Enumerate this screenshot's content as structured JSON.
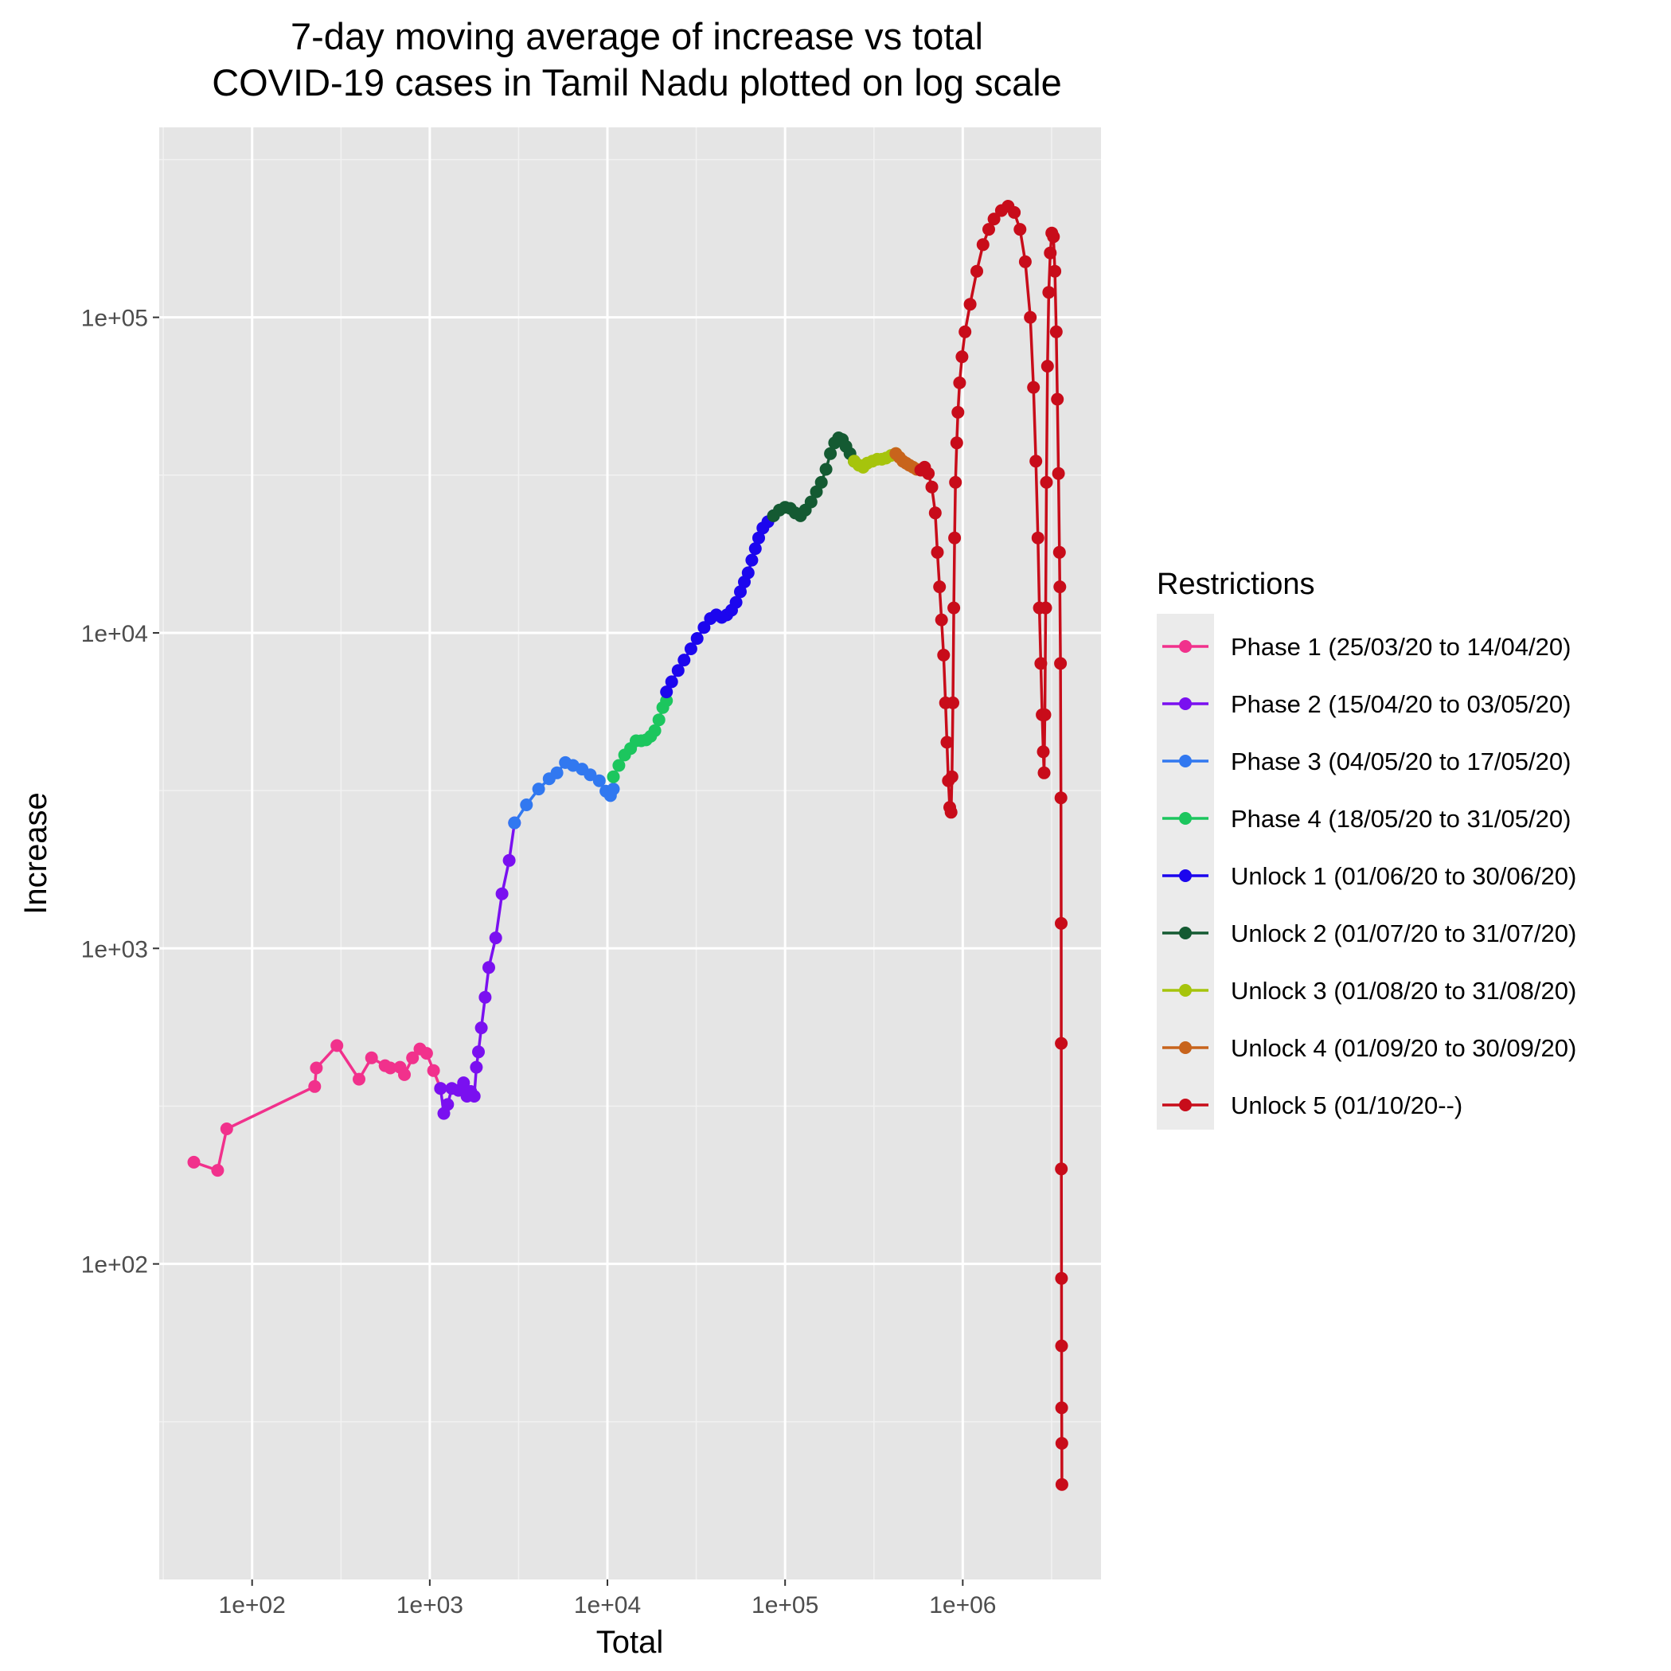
{
  "chart_data": {
    "type": "line",
    "title_line1": "7-day moving average of increase vs total",
    "title_line2": "COVID-19 cases in Tamil Nadu plotted on log scale",
    "xlabel": "Total",
    "ylabel": "Increase",
    "x_scale": "log10",
    "y_scale": "log10",
    "xlim": [
      30,
      6000000
    ],
    "ylim": [
      10,
      400000
    ],
    "x_ticks": [
      100,
      1000,
      10000,
      100000,
      1000000
    ],
    "x_tick_labels": [
      "1e+02",
      "1e+03",
      "1e+04",
      "1e+05",
      "1e+06"
    ],
    "y_ticks": [
      100,
      1000,
      10000,
      100000
    ],
    "y_tick_labels": [
      "1e+02",
      "1e+03",
      "1e+04",
      "1e+05"
    ],
    "grid": true,
    "legend_position": "right",
    "legend_title": "Restrictions",
    "series": [
      {
        "name": "Phase 1 (25/03/20 to 14/04/20)",
        "color": "#f1318c",
        "points": [
          [
            47,
            210
          ],
          [
            64,
            198
          ],
          [
            72,
            268
          ],
          [
            225,
            365
          ],
          [
            230,
            418
          ],
          [
            300,
            492
          ],
          [
            400,
            385
          ],
          [
            470,
            450
          ],
          [
            560,
            425
          ],
          [
            600,
            418
          ],
          [
            680,
            420
          ],
          [
            720,
            398
          ],
          [
            800,
            450
          ],
          [
            880,
            480
          ],
          [
            960,
            465
          ],
          [
            1050,
            410
          ],
          [
            1150,
            360
          ]
        ]
      },
      {
        "name": "Phase 2 (15/04/20 to 03/05/20)",
        "color": "#7a10f0",
        "points": [
          [
            1150,
            360
          ],
          [
            1200,
            300
          ],
          [
            1260,
            320
          ],
          [
            1330,
            360
          ],
          [
            1450,
            355
          ],
          [
            1550,
            375
          ],
          [
            1620,
            340
          ],
          [
            1700,
            352
          ],
          [
            1780,
            340
          ],
          [
            1830,
            420
          ],
          [
            1880,
            470
          ],
          [
            1950,
            560
          ],
          [
            2050,
            700
          ],
          [
            2150,
            870
          ],
          [
            2350,
            1080
          ],
          [
            2550,
            1490
          ],
          [
            2800,
            1900
          ],
          [
            3000,
            2500
          ]
        ]
      },
      {
        "name": "Phase 3 (04/05/20 to 17/05/20)",
        "color": "#3178f0",
        "points": [
          [
            3000,
            2500
          ],
          [
            3500,
            2850
          ],
          [
            4100,
            3200
          ],
          [
            4700,
            3450
          ],
          [
            5200,
            3600
          ],
          [
            5800,
            3880
          ],
          [
            6400,
            3800
          ],
          [
            7200,
            3700
          ],
          [
            8000,
            3550
          ],
          [
            9000,
            3400
          ],
          [
            9800,
            3150
          ],
          [
            10400,
            3050
          ],
          [
            10800,
            3200
          ]
        ]
      },
      {
        "name": "Phase 4 (18/05/20 to 31/05/20)",
        "color": "#1cc65e",
        "points": [
          [
            10800,
            3500
          ],
          [
            11600,
            3800
          ],
          [
            12500,
            4100
          ],
          [
            13500,
            4300
          ],
          [
            14500,
            4550
          ],
          [
            15500,
            4550
          ],
          [
            16500,
            4580
          ],
          [
            17500,
            4700
          ],
          [
            18500,
            4900
          ],
          [
            19500,
            5300
          ],
          [
            20500,
            5800
          ],
          [
            21500,
            6100
          ]
        ]
      },
      {
        "name": "Unlock 1 (01/06/20 to 30/06/20)",
        "color": "#1c06ee",
        "points": [
          [
            21500,
            6500
          ],
          [
            23000,
            7000
          ],
          [
            25000,
            7600
          ],
          [
            27000,
            8200
          ],
          [
            29500,
            8900
          ],
          [
            32000,
            9600
          ],
          [
            35000,
            10400
          ],
          [
            38000,
            11100
          ],
          [
            41000,
            11400
          ],
          [
            44000,
            11200
          ],
          [
            47000,
            11400
          ],
          [
            50000,
            11800
          ],
          [
            53000,
            12500
          ],
          [
            56000,
            13500
          ],
          [
            59000,
            14500
          ],
          [
            62000,
            15500
          ],
          [
            65000,
            17000
          ],
          [
            68000,
            18500
          ],
          [
            71000,
            20000
          ],
          [
            75000,
            21500
          ],
          [
            80000,
            22500
          ],
          [
            86000,
            23500
          ]
        ]
      },
      {
        "name": "Unlock 2 (01/07/20 to 31/07/20)",
        "color": "#145a32",
        "points": [
          [
            86000,
            23500
          ],
          [
            93000,
            24500
          ],
          [
            100000,
            25000
          ],
          [
            107000,
            24800
          ],
          [
            114000,
            24000
          ],
          [
            122000,
            23500
          ],
          [
            130000,
            24500
          ],
          [
            140000,
            26000
          ],
          [
            150000,
            28000
          ],
          [
            160000,
            30000
          ],
          [
            170000,
            33000
          ],
          [
            180000,
            37000
          ],
          [
            190000,
            40000
          ],
          [
            200000,
            41500
          ],
          [
            210000,
            41000
          ],
          [
            220000,
            39000
          ],
          [
            232000,
            37000
          ],
          [
            245000,
            35000
          ]
        ]
      },
      {
        "name": "Unlock 3 (01/08/20 to 31/08/20)",
        "color": "#a6c40c",
        "points": [
          [
            245000,
            35000
          ],
          [
            260000,
            34000
          ],
          [
            275000,
            33500
          ],
          [
            290000,
            34500
          ],
          [
            310000,
            35000
          ],
          [
            330000,
            35500
          ],
          [
            350000,
            35500
          ],
          [
            370000,
            35800
          ],
          [
            395000,
            36500
          ],
          [
            420000,
            37000
          ]
        ]
      },
      {
        "name": "Unlock 4 (01/09/20 to 30/09/20)",
        "color": "#c8641c",
        "points": [
          [
            420000,
            37000
          ],
          [
            440000,
            36000
          ],
          [
            460000,
            35000
          ],
          [
            480000,
            34500
          ],
          [
            500000,
            34000
          ],
          [
            525000,
            33500
          ],
          [
            550000,
            33000
          ],
          [
            580000,
            32800
          ]
        ]
      },
      {
        "name": "Unlock 5 (01/10/20--)",
        "color": "#c80c1a",
        "points": [
          [
            580000,
            32800
          ],
          [
            610000,
            33500
          ],
          [
            640000,
            32000
          ],
          [
            670000,
            29000
          ],
          [
            700000,
            24000
          ],
          [
            720000,
            18000
          ],
          [
            740000,
            14000
          ],
          [
            760000,
            11000
          ],
          [
            780000,
            8500
          ],
          [
            800000,
            6000
          ],
          [
            815000,
            4500
          ],
          [
            830000,
            3400
          ],
          [
            845000,
            2800
          ],
          [
            860000,
            2700
          ],
          [
            870000,
            3500
          ],
          [
            880000,
            6000
          ],
          [
            890000,
            12000
          ],
          [
            900000,
            20000
          ],
          [
            910000,
            30000
          ],
          [
            925000,
            40000
          ],
          [
            940000,
            50000
          ],
          [
            960000,
            62000
          ],
          [
            990000,
            75000
          ],
          [
            1030000,
            90000
          ],
          [
            1100000,
            110000
          ],
          [
            1200000,
            140000
          ],
          [
            1300000,
            170000
          ],
          [
            1400000,
            190000
          ],
          [
            1500000,
            205000
          ],
          [
            1650000,
            218000
          ],
          [
            1800000,
            225000
          ],
          [
            1950000,
            215000
          ],
          [
            2100000,
            190000
          ],
          [
            2250000,
            150000
          ],
          [
            2400000,
            100000
          ],
          [
            2500000,
            60000
          ],
          [
            2580000,
            35000
          ],
          [
            2650000,
            20000
          ],
          [
            2700000,
            12000
          ],
          [
            2750000,
            8000
          ],
          [
            2800000,
            5500
          ],
          [
            2840000,
            4200
          ],
          [
            2870000,
            3600
          ],
          [
            2900000,
            5500
          ],
          [
            2930000,
            12000
          ],
          [
            2960000,
            30000
          ],
          [
            3000000,
            70000
          ],
          [
            3050000,
            120000
          ],
          [
            3110000,
            160000
          ],
          [
            3170000,
            185000
          ],
          [
            3240000,
            180000
          ],
          [
            3300000,
            140000
          ],
          [
            3360000,
            90000
          ],
          [
            3410000,
            55000
          ],
          [
            3460000,
            32000
          ],
          [
            3500000,
            18000
          ],
          [
            3520000,
            14000
          ],
          [
            3550000,
            8000
          ],
          [
            3570000,
            3000
          ],
          [
            3580000,
            1200
          ],
          [
            3585000,
            500
          ],
          [
            3590000,
            200
          ],
          [
            3595000,
            90
          ],
          [
            3600000,
            55
          ],
          [
            3605000,
            35
          ],
          [
            3610000,
            27
          ],
          [
            3615000,
            20
          ]
        ]
      }
    ]
  }
}
